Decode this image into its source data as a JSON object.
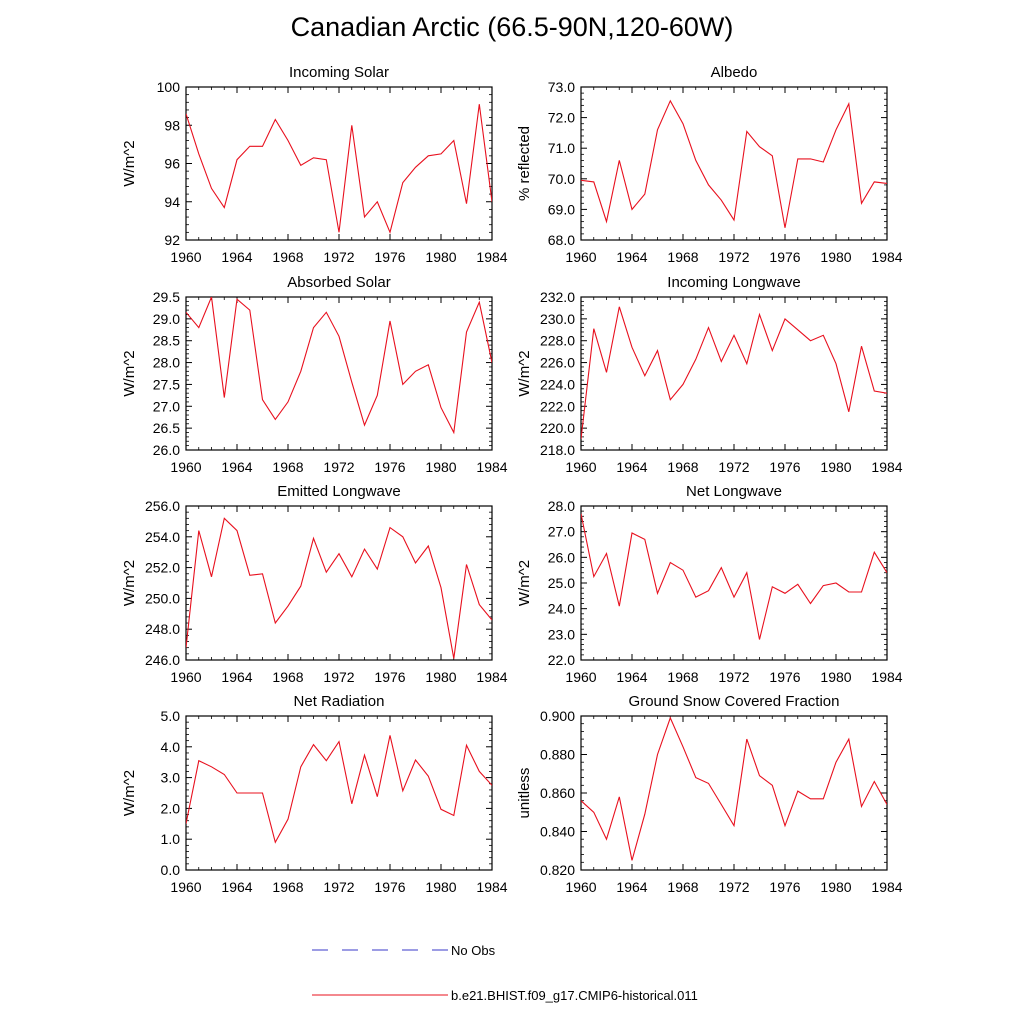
{
  "figure": {
    "title": "Canadian Arctic (66.5-90N,120-60W)",
    "legend": {
      "obs_label": "No Obs",
      "obs_color": "#3a3ac8",
      "model_label": "b.e21.BHIST.f09_g17.CMIP6-historical.011",
      "model_color": "#e8101e"
    }
  },
  "chart_data": [
    {
      "type": "line",
      "title": "Incoming Solar",
      "ylabel": "W/m^2",
      "xlim": [
        1960,
        1984
      ],
      "ylim": [
        92,
        100
      ],
      "yticks": [
        "92",
        "94",
        "96",
        "98",
        "100"
      ],
      "xticks": [
        "1960",
        "1964",
        "1968",
        "1972",
        "1976",
        "1980",
        "1984"
      ],
      "x": [
        1960,
        1961,
        1962,
        1963,
        1964,
        1965,
        1966,
        1967,
        1968,
        1969,
        1970,
        1971,
        1972,
        1973,
        1974,
        1975,
        1976,
        1977,
        1978,
        1979,
        1980,
        1981,
        1982,
        1983,
        1984
      ],
      "values": [
        98.6,
        96.5,
        94.7,
        93.7,
        96.2,
        96.9,
        96.9,
        98.3,
        97.2,
        95.9,
        96.3,
        96.2,
        92.4,
        98.0,
        93.2,
        94.0,
        92.4,
        95.0,
        95.8,
        96.4,
        96.5,
        97.2,
        93.9,
        99.1,
        94.0
      ]
    },
    {
      "type": "line",
      "title": "Albedo",
      "ylabel": "% reflected",
      "xlim": [
        1960,
        1984
      ],
      "ylim": [
        68,
        73
      ],
      "yticks": [
        "68.0",
        "69.0",
        "70.0",
        "71.0",
        "72.0",
        "73.0"
      ],
      "xticks": [
        "1960",
        "1964",
        "1968",
        "1972",
        "1976",
        "1980",
        "1984"
      ],
      "x": [
        1960,
        1961,
        1962,
        1963,
        1964,
        1965,
        1966,
        1967,
        1968,
        1969,
        1970,
        1971,
        1972,
        1973,
        1974,
        1975,
        1976,
        1977,
        1978,
        1979,
        1980,
        1981,
        1982,
        1983,
        1984
      ],
      "values": [
        69.95,
        69.9,
        68.6,
        70.6,
        69.0,
        69.5,
        71.6,
        72.55,
        71.8,
        70.6,
        69.8,
        69.3,
        68.65,
        71.55,
        71.05,
        70.75,
        68.4,
        70.65,
        70.65,
        70.55,
        71.6,
        72.45,
        69.2,
        69.9,
        69.85
      ]
    },
    {
      "type": "line",
      "title": "Absorbed Solar",
      "ylabel": "W/m^2",
      "xlim": [
        1960,
        1984
      ],
      "ylim": [
        26,
        29.5
      ],
      "yticks": [
        "26.0",
        "26.5",
        "27.0",
        "27.5",
        "28.0",
        "28.5",
        "29.0",
        "29.5"
      ],
      "xticks": [
        "1960",
        "1964",
        "1968",
        "1972",
        "1976",
        "1980",
        "1984"
      ],
      "x": [
        1960,
        1961,
        1962,
        1963,
        1964,
        1965,
        1966,
        1967,
        1968,
        1969,
        1970,
        1971,
        1972,
        1973,
        1974,
        1975,
        1976,
        1977,
        1978,
        1979,
        1980,
        1981,
        1982,
        1983,
        1984
      ],
      "values": [
        29.15,
        28.8,
        29.5,
        27.2,
        29.45,
        29.2,
        27.15,
        26.7,
        27.1,
        27.8,
        28.8,
        29.15,
        28.6,
        27.55,
        26.57,
        27.25,
        28.95,
        27.5,
        27.8,
        27.95,
        26.97,
        26.4,
        28.7,
        29.38,
        28.0
      ]
    },
    {
      "type": "line",
      "title": "Incoming Longwave",
      "ylabel": "W/m^2",
      "xlim": [
        1960,
        1984
      ],
      "ylim": [
        218,
        232
      ],
      "yticks": [
        "218.0",
        "220.0",
        "222.0",
        "224.0",
        "226.0",
        "228.0",
        "230.0",
        "232.0"
      ],
      "xticks": [
        "1960",
        "1964",
        "1968",
        "1972",
        "1976",
        "1980",
        "1984"
      ],
      "x": [
        1960,
        1961,
        1962,
        1963,
        1964,
        1965,
        1966,
        1967,
        1968,
        1969,
        1970,
        1971,
        1972,
        1973,
        1974,
        1975,
        1976,
        1977,
        1978,
        1979,
        1980,
        1981,
        1982,
        1983,
        1984
      ],
      "values": [
        219.0,
        229.1,
        225.1,
        231.1,
        227.4,
        224.8,
        227.1,
        222.6,
        224.0,
        226.3,
        229.2,
        226.1,
        228.5,
        225.9,
        230.4,
        227.1,
        230.0,
        229.0,
        228.0,
        228.5,
        225.9,
        221.5,
        227.5,
        223.4,
        223.2
      ]
    },
    {
      "type": "line",
      "title": "Emitted Longwave",
      "ylabel": "W/m^2",
      "xlim": [
        1960,
        1984
      ],
      "ylim": [
        246,
        256
      ],
      "yticks": [
        "246.0",
        "248.0",
        "250.0",
        "252.0",
        "254.0",
        "256.0"
      ],
      "xticks": [
        "1960",
        "1964",
        "1968",
        "1972",
        "1976",
        "1980",
        "1984"
      ],
      "x": [
        1960,
        1961,
        1962,
        1963,
        1964,
        1965,
        1966,
        1967,
        1968,
        1969,
        1970,
        1971,
        1972,
        1973,
        1974,
        1975,
        1976,
        1977,
        1978,
        1979,
        1980,
        1981,
        1982,
        1983,
        1984
      ],
      "values": [
        246.8,
        254.4,
        251.4,
        255.2,
        254.4,
        251.5,
        251.6,
        248.4,
        249.5,
        250.8,
        253.9,
        251.7,
        252.9,
        251.4,
        253.2,
        251.9,
        254.6,
        254.0,
        252.3,
        253.4,
        250.7,
        246.1,
        252.2,
        249.6,
        248.6
      ]
    },
    {
      "type": "line",
      "title": "Net Longwave",
      "ylabel": "W/m^2",
      "xlim": [
        1960,
        1984
      ],
      "ylim": [
        22,
        28
      ],
      "yticks": [
        "22.0",
        "23.0",
        "24.0",
        "25.0",
        "26.0",
        "27.0",
        "28.0"
      ],
      "xticks": [
        "1960",
        "1964",
        "1968",
        "1972",
        "1976",
        "1980",
        "1984"
      ],
      "x": [
        1960,
        1961,
        1962,
        1963,
        1964,
        1965,
        1966,
        1967,
        1968,
        1969,
        1970,
        1971,
        1972,
        1973,
        1974,
        1975,
        1976,
        1977,
        1978,
        1979,
        1980,
        1981,
        1982,
        1983,
        1984
      ],
      "values": [
        27.7,
        25.25,
        26.15,
        24.1,
        26.95,
        26.7,
        24.6,
        25.8,
        25.5,
        24.45,
        24.7,
        25.6,
        24.45,
        25.4,
        22.8,
        24.85,
        24.6,
        24.95,
        24.2,
        24.9,
        25.0,
        24.65,
        24.65,
        26.2,
        25.4
      ]
    },
    {
      "type": "line",
      "title": "Net Radiation",
      "ylabel": "W/m^2",
      "xlim": [
        1960,
        1984
      ],
      "ylim": [
        0,
        5
      ],
      "yticks": [
        "0.0",
        "1.0",
        "2.0",
        "3.0",
        "4.0",
        "5.0"
      ],
      "xticks": [
        "1960",
        "1964",
        "1968",
        "1972",
        "1976",
        "1980",
        "1984"
      ],
      "x": [
        1960,
        1961,
        1962,
        1963,
        1964,
        1965,
        1966,
        1967,
        1968,
        1969,
        1970,
        1971,
        1972,
        1973,
        1974,
        1975,
        1976,
        1977,
        1978,
        1979,
        1980,
        1981,
        1982,
        1983,
        1984
      ],
      "values": [
        1.5,
        3.55,
        3.35,
        3.1,
        2.5,
        2.5,
        2.5,
        0.9,
        1.65,
        3.35,
        4.07,
        3.55,
        4.17,
        2.15,
        3.73,
        2.38,
        4.37,
        2.57,
        3.57,
        3.05,
        1.97,
        1.77,
        4.05,
        3.2,
        2.75
      ]
    },
    {
      "type": "line",
      "title": "Ground Snow Covered Fraction",
      "ylabel": "unitless",
      "xlim": [
        1960,
        1984
      ],
      "ylim": [
        0.82,
        0.9
      ],
      "yticks": [
        "0.820",
        "0.840",
        "0.860",
        "0.880",
        "0.900"
      ],
      "xticks": [
        "1960",
        "1964",
        "1968",
        "1972",
        "1976",
        "1980",
        "1984"
      ],
      "x": [
        1960,
        1961,
        1962,
        1963,
        1964,
        1965,
        1966,
        1967,
        1968,
        1969,
        1970,
        1971,
        1972,
        1973,
        1974,
        1975,
        1976,
        1977,
        1978,
        1979,
        1980,
        1981,
        1982,
        1983,
        1984
      ],
      "values": [
        0.856,
        0.85,
        0.836,
        0.858,
        0.825,
        0.849,
        0.88,
        0.899,
        0.884,
        0.868,
        0.865,
        0.854,
        0.843,
        0.888,
        0.869,
        0.864,
        0.843,
        0.861,
        0.857,
        0.857,
        0.876,
        0.888,
        0.853,
        0.866,
        0.854
      ]
    }
  ]
}
